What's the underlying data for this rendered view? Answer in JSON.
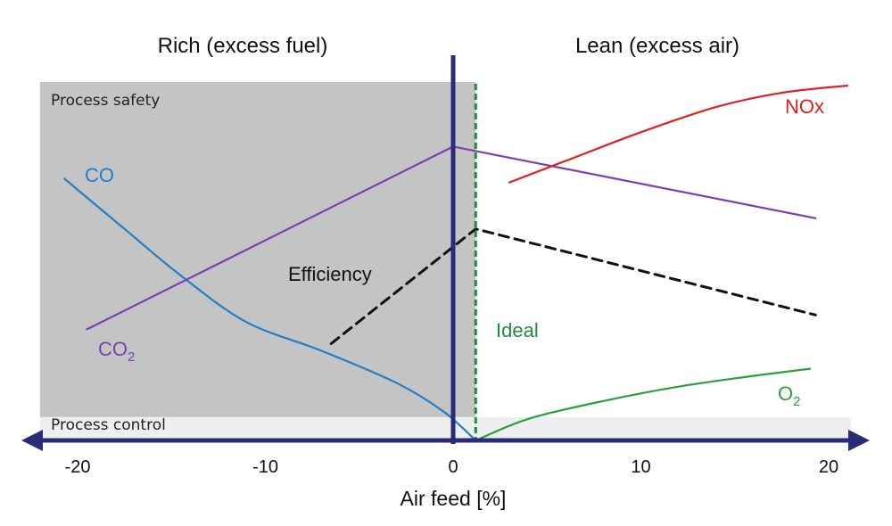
{
  "chart_data": {
    "type": "line",
    "title": "",
    "xlabel": "Air feed [%]",
    "ylabel": "",
    "xlim": [
      -22,
      21.5
    ],
    "ylim": [
      0,
      100
    ],
    "x_ticks": [
      -20,
      -10,
      0,
      10,
      20
    ],
    "grid": false,
    "regions": {
      "rich": "Rich (excess fuel)",
      "lean": "Lean (excess air)"
    },
    "zones": [
      {
        "name": "Process safety",
        "x_range": [
          -22,
          1.2
        ],
        "y_range": [
          6.5,
          100
        ],
        "color": "#c4c4c4"
      },
      {
        "name": "Process control",
        "x_range": [
          -22,
          21.5
        ],
        "y_range": [
          0,
          6.5
        ],
        "color": "#efefef"
      }
    ],
    "ideal": {
      "label": "Ideal",
      "x": 1.2,
      "color": "#1e8c3c"
    },
    "series": [
      {
        "name": "CO",
        "color": "#1f7fc9",
        "dashed": false,
        "points": [
          [
            -20.7,
            73
          ],
          [
            -17.5,
            59
          ],
          [
            -14.5,
            46
          ],
          [
            -11,
            33
          ],
          [
            -7,
            25
          ],
          [
            -3,
            16
          ],
          [
            -0.5,
            8
          ],
          [
            1.2,
            0
          ]
        ]
      },
      {
        "name": "CO2",
        "color": "#7a3fb0",
        "dashed": false,
        "points": [
          [
            -19.5,
            31
          ],
          [
            0,
            82
          ],
          [
            19.3,
            62
          ]
        ]
      },
      {
        "name": "Efficiency",
        "color": "#111111",
        "dashed": true,
        "points": [
          [
            -6.5,
            27
          ],
          [
            1.2,
            59
          ],
          [
            19.3,
            35
          ]
        ]
      },
      {
        "name": "NOx",
        "color": "#e02020",
        "dashed": false,
        "points": [
          [
            3,
            72
          ],
          [
            6,
            78
          ],
          [
            10,
            86
          ],
          [
            14,
            93
          ],
          [
            17.5,
            97
          ],
          [
            21,
            99
          ]
        ]
      },
      {
        "name": "O2",
        "color": "#2aa03c",
        "dashed": false,
        "points": [
          [
            1.2,
            0
          ],
          [
            4,
            6
          ],
          [
            8,
            11
          ],
          [
            12,
            15
          ],
          [
            16,
            18
          ],
          [
            19,
            20
          ]
        ]
      }
    ]
  }
}
